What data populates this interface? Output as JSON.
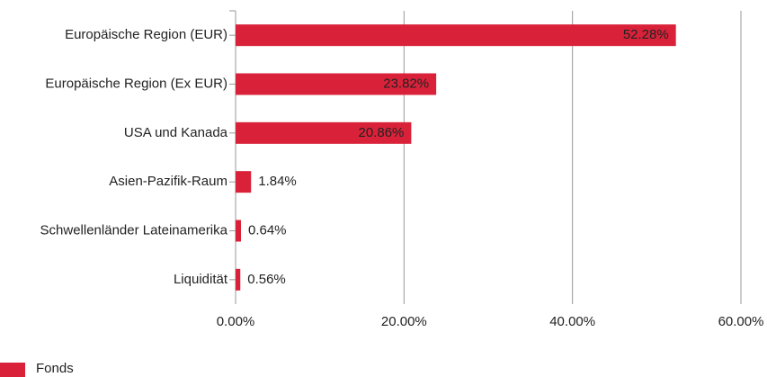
{
  "chart_data": {
    "type": "hbar",
    "categories": [
      "Europäische Region (EUR)",
      "Europäische Region (Ex EUR)",
      "USA und Kanada",
      "Asien-Pazifik-Raum",
      "Schwellenländer Lateinamerika",
      "Liquidität"
    ],
    "series": [
      {
        "name": "Fonds",
        "color": "#d92239",
        "values": [
          52.28,
          23.82,
          20.86,
          1.84,
          0.64,
          0.56
        ],
        "value_labels": [
          "52.28%",
          "23.82%",
          "20.86%",
          "1.84%",
          "0.64%",
          "0.56%"
        ]
      }
    ],
    "xlim": [
      0,
      60
    ],
    "xticks": [
      {
        "value": 0,
        "label": "0.00%"
      },
      {
        "value": 20,
        "label": "20.00%"
      },
      {
        "value": 40,
        "label": "40.00%"
      },
      {
        "value": 60,
        "label": "60.00%"
      }
    ],
    "grid": true,
    "legend": "bottom-left"
  }
}
